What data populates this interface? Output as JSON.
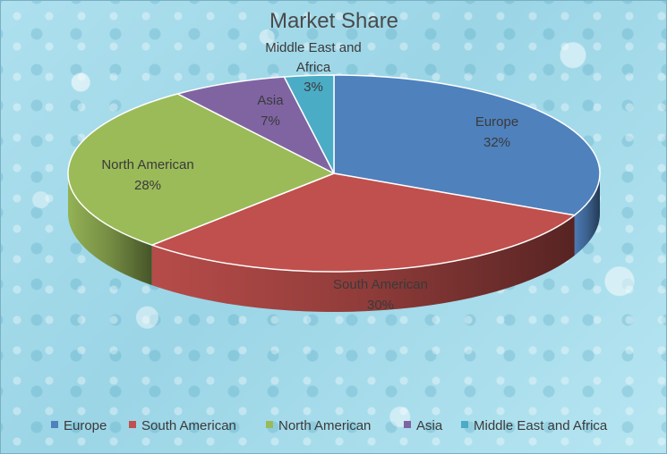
{
  "colors": {
    "Europe": "#4f81bd",
    "South American": "#c0504d",
    "North American": "#9bbb59",
    "Asia": "#8064a2",
    "Middle East and Africa": "#4bacc6"
  },
  "chart_data": {
    "type": "pie",
    "title": "Market Share",
    "legend_position": "bottom",
    "style": "3d",
    "categories": [
      "Europe",
      "South American",
      "North American",
      "Asia",
      "Middle East and Africa"
    ],
    "values": [
      32,
      30,
      28,
      7,
      3
    ],
    "data_labels": [
      {
        "name": "Europe",
        "percent": "32%"
      },
      {
        "name": "South American",
        "percent": "30%"
      },
      {
        "name": "North American",
        "percent": "28%"
      },
      {
        "name": "Asia",
        "percent": "7%"
      },
      {
        "name": "Middle East and Africa",
        "percent": "3%"
      }
    ]
  }
}
